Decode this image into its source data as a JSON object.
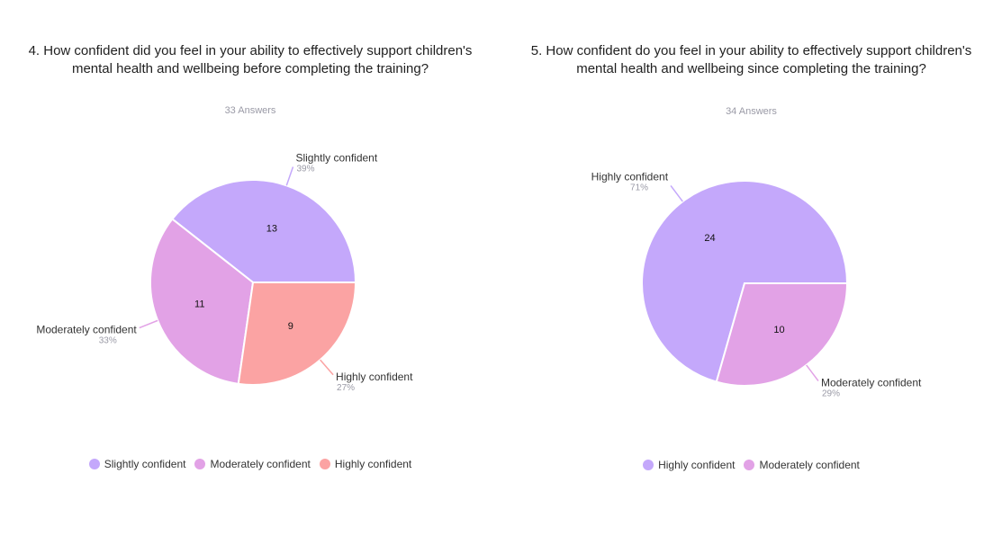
{
  "chart_data": [
    {
      "type": "pie",
      "title": "4. How confident did you feel in your ability to effectively support children's mental health and wellbeing before completing the training?",
      "answers_label": "33 Answers",
      "slices": [
        {
          "name": "Slightly confident",
          "value": 13,
          "percent_label": "39%",
          "color": "#c4a8fb"
        },
        {
          "name": "Moderately confident",
          "value": 11,
          "percent_label": "33%",
          "color": "#e2a2e6"
        },
        {
          "name": "Highly confident",
          "value": 9,
          "percent_label": "27%",
          "color": "#fba3a3"
        }
      ],
      "legend": [
        "Slightly confident",
        "Moderately confident",
        "Highly confident"
      ]
    },
    {
      "type": "pie",
      "title": "5. How confident do you feel in your ability to effectively support children's mental health and wellbeing since completing the training?",
      "answers_label": "34 Answers",
      "slices": [
        {
          "name": "Highly confident",
          "value": 24,
          "percent_label": "71%",
          "color": "#c4a8fb"
        },
        {
          "name": "Moderately confident",
          "value": 10,
          "percent_label": "29%",
          "color": "#e2a2e6"
        }
      ],
      "legend": [
        "Highly confident",
        "Moderately confident"
      ]
    }
  ]
}
